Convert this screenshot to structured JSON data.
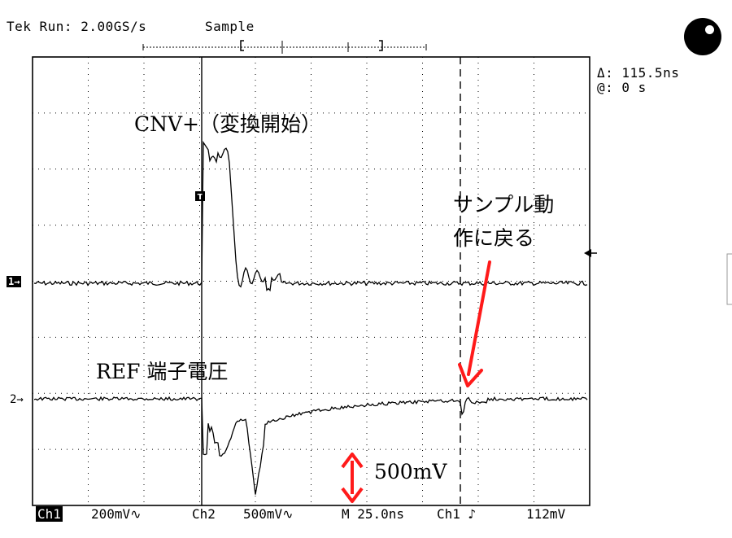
{
  "header": {
    "status": "Tek Run: 2.00GS/s",
    "mode": "Sample"
  },
  "cursor_readout": {
    "delta": "Δ: 115.5ns",
    "at": "@: 0 s"
  },
  "channel_markers": {
    "ch1": "1→",
    "ch2": "2→"
  },
  "annotations": {
    "cnv": "CNV+（変換開始）",
    "sample_return_line1": "サンプル動",
    "sample_return_line2": "作に戻る",
    "ref_voltage": "REF 端子電圧",
    "scale": "500mV"
  },
  "footer": {
    "ch1_label": "Ch1",
    "ch1_scale": "200mV∿",
    "ch2_label": "Ch2",
    "ch2_scale": "500mV∿",
    "timebase": "M 25.0ns",
    "trigger": "Ch1 ♪",
    "trigger_level": "112mV"
  },
  "colors": {
    "arrow": "#ff1a1a",
    "trace": "#000000",
    "grid": "#000000"
  }
}
